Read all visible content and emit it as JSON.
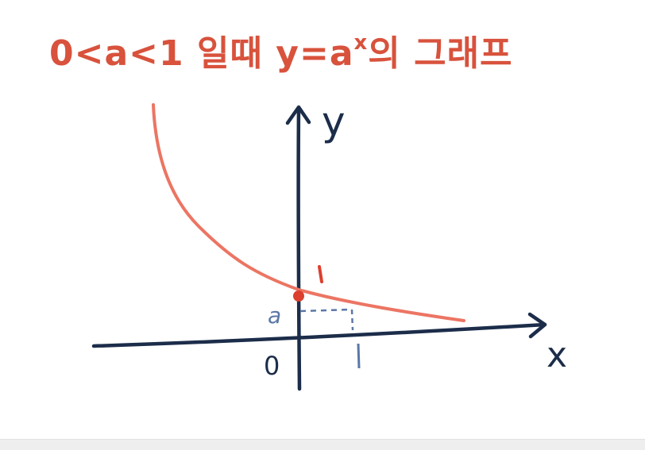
{
  "title": {
    "prefix": "0<a<1 일때 ",
    "base": "y=a",
    "exponent": "x",
    "suffix": "의 그래프"
  },
  "axes": {
    "x_label": "x",
    "y_label": "y",
    "origin_label": "0"
  },
  "labels": {
    "y_intercept": "1",
    "a_value": "a",
    "x_one": "1"
  },
  "colors": {
    "curve": "#ec7563",
    "title": "#d8523c",
    "axis": "#1c2d4a",
    "guide": "#5b78a6",
    "point": "#dc3f2e"
  }
}
